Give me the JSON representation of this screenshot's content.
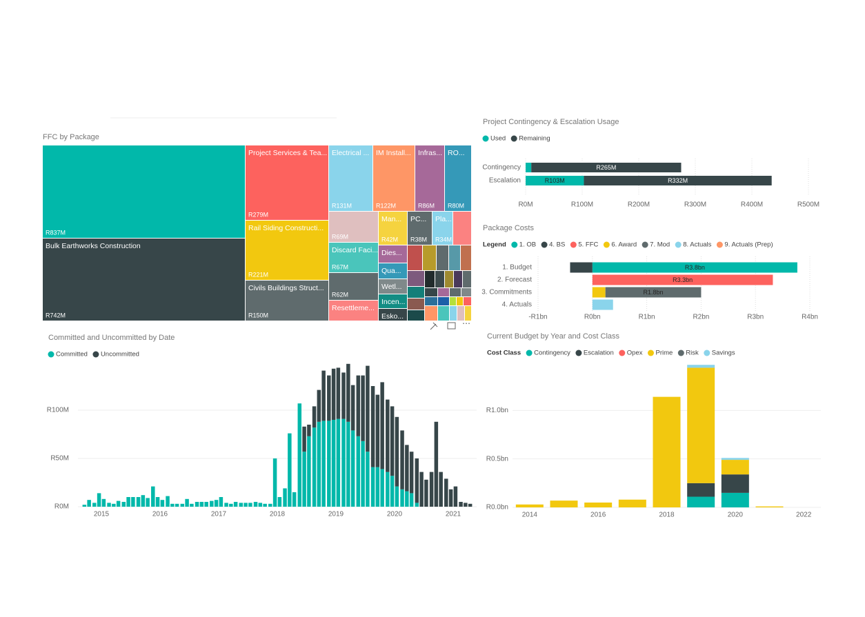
{
  "chart_data": [
    {
      "type": "treemap",
      "title": "FFC by Package",
      "categories": [
        null,
        "Bulk Earthworks Construction",
        "Project Services & Tea...",
        "Rail Siding Constructi...",
        "Civils Buildings Struct...",
        "Electrical ...",
        "IM Install...",
        "Infras...",
        "RO...",
        null,
        "Discard Faci...",
        "Man...",
        "PC...",
        "Pla...",
        null,
        "Resettleme...",
        "Dies...",
        "Qua...",
        "Wetl...",
        "Incen...",
        "Esko..."
      ],
      "values": [
        837,
        742,
        279,
        221,
        150,
        131,
        122,
        86,
        80,
        69,
        67,
        42,
        38,
        34,
        62,
        null,
        null,
        null,
        null,
        null,
        null
      ],
      "value_labels": [
        "R837M",
        "R742M",
        "R279M",
        "R221M",
        "R150M",
        "R131M",
        "R122M",
        "R86M",
        "R80M",
        "R69M",
        "R67M",
        "R42M",
        "R38M",
        "R34M",
        "R62M",
        null,
        null,
        null,
        null,
        null,
        null
      ],
      "colors": [
        "#01b8aa",
        "#374649",
        "#fd625e",
        "#f2c80f",
        "#5f6b6d",
        "#8ad4eb",
        "#fe9666",
        "#a66999",
        "#3599b8",
        "#dfbfbf",
        "#4ac5bb",
        "#f5d33f",
        "#5f6b6d",
        "#8ad4eb",
        "#5f6b6d",
        "#fb8281",
        "#a66999",
        "#3599b8",
        "#7f898a",
        "#138d84",
        "#374649"
      ]
    },
    {
      "type": "bar",
      "horizontal": true,
      "stacked": true,
      "title": "Project Contingency & Escalation Usage",
      "categories": [
        "Contingency",
        "Escalation"
      ],
      "series": [
        {
          "name": "Used",
          "color": "#01b8aa",
          "values": [
            10,
            103
          ],
          "value_labels": [
            null,
            "R103M"
          ]
        },
        {
          "name": "Remaining",
          "color": "#374649",
          "values": [
            265,
            332
          ],
          "value_labels": [
            "R265M",
            "R332M"
          ]
        }
      ],
      "xlim": [
        0,
        500
      ],
      "xticks": [
        {
          "value": 0,
          "label": "R0M"
        },
        {
          "value": 100,
          "label": "R100M"
        },
        {
          "value": 200,
          "label": "R200M"
        },
        {
          "value": 300,
          "label": "R300M"
        },
        {
          "value": 400,
          "label": "R400M"
        },
        {
          "value": 500,
          "label": "R500M"
        }
      ],
      "grid": true
    },
    {
      "type": "bar",
      "horizontal": true,
      "stacked": true,
      "title": "Package Costs",
      "legend_title": "Legend",
      "categories": [
        "1. Budget",
        "2. Forecast",
        "3. Commitments",
        "4. Actuals"
      ],
      "series": [
        {
          "name": "1. OB",
          "color": "#01b8aa",
          "values": [
            3.77,
            null,
            null,
            null
          ],
          "value_labels": [
            "R3.8bn",
            null,
            null,
            null
          ]
        },
        {
          "name": "4. BS",
          "color": "#374649",
          "values": [
            -0.41,
            null,
            null,
            null
          ]
        },
        {
          "name": "5. FFC",
          "color": "#fd625e",
          "values": [
            null,
            3.32,
            null,
            null
          ],
          "value_labels": [
            null,
            "R3.3bn",
            null,
            null
          ]
        },
        {
          "name": "6. Award",
          "color": "#f2c80f",
          "values": [
            null,
            null,
            0.24,
            null
          ]
        },
        {
          "name": "7. Mod",
          "color": "#5f6b6d",
          "values": [
            null,
            null,
            1.76,
            null
          ],
          "value_labels": [
            null,
            null,
            "R1.8bn",
            null
          ]
        },
        {
          "name": "8. Actuals",
          "color": "#8ad4eb",
          "values": [
            null,
            null,
            null,
            0.38
          ]
        },
        {
          "name": "9. Actuals (Prep)",
          "color": "#fe9666",
          "values": [
            null,
            null,
            null,
            null
          ]
        }
      ],
      "xlim": [
        -1.1,
        4.1
      ],
      "xticks": [
        {
          "value": -1,
          "label": "-R1bn"
        },
        {
          "value": 0,
          "label": "R0bn"
        },
        {
          "value": 1,
          "label": "R1bn"
        },
        {
          "value": 2,
          "label": "R2bn"
        },
        {
          "value": 3,
          "label": "R3bn"
        },
        {
          "value": 4,
          "label": "R4bn"
        }
      ],
      "grid": true
    },
    {
      "type": "bar",
      "horizontal": false,
      "stacked": true,
      "title": "Committed and Uncommitted by Date",
      "x": [
        2014.71,
        2014.79,
        2014.88,
        2014.96,
        2015.04,
        2015.13,
        2015.21,
        2015.29,
        2015.38,
        2015.46,
        2015.54,
        2015.63,
        2015.71,
        2015.79,
        2015.88,
        2015.96,
        2016.04,
        2016.13,
        2016.21,
        2016.29,
        2016.38,
        2016.46,
        2016.54,
        2016.63,
        2016.71,
        2016.79,
        2016.88,
        2016.96,
        2017.04,
        2017.13,
        2017.21,
        2017.29,
        2017.38,
        2017.46,
        2017.54,
        2017.63,
        2017.71,
        2017.79,
        2017.88,
        2017.96,
        2018.04,
        2018.13,
        2018.21,
        2018.29,
        2018.38,
        2018.46,
        2018.54,
        2018.63,
        2018.71,
        2018.79,
        2018.88,
        2018.96,
        2019.04,
        2019.13,
        2019.21,
        2019.29,
        2019.38,
        2019.46,
        2019.54,
        2019.63,
        2019.71,
        2019.79,
        2019.88,
        2019.96,
        2020.04,
        2020.13,
        2020.21,
        2020.29,
        2020.38,
        2020.46,
        2020.54,
        2020.63,
        2020.71,
        2020.79,
        2020.88,
        2020.96,
        2021.04,
        2021.13,
        2021.21,
        2021.29
      ],
      "series": [
        {
          "name": "Committed",
          "color": "#01b8aa",
          "values": [
            2,
            7,
            4,
            14,
            8,
            4,
            3,
            6,
            5,
            10,
            10,
            10,
            12,
            9,
            21,
            10,
            7,
            11,
            3,
            3,
            3,
            8,
            3,
            5,
            5,
            5,
            6,
            7,
            10,
            4,
            3,
            5,
            4,
            4,
            4,
            5,
            4,
            3,
            3,
            50,
            10,
            19,
            76,
            15,
            107,
            57,
            73,
            82,
            88,
            89,
            89,
            90,
            91,
            91,
            88,
            79,
            73,
            68,
            57,
            41,
            41,
            39,
            36,
            32,
            21,
            18,
            16,
            14,
            4,
            null,
            null,
            null,
            null,
            null,
            null,
            null,
            null,
            null,
            null,
            null
          ]
        },
        {
          "name": "Uncommitted",
          "color": "#374649",
          "values": [
            null,
            null,
            null,
            null,
            null,
            null,
            null,
            null,
            null,
            null,
            null,
            null,
            null,
            null,
            null,
            null,
            null,
            null,
            null,
            null,
            null,
            null,
            null,
            null,
            null,
            null,
            null,
            null,
            null,
            null,
            null,
            null,
            null,
            null,
            null,
            null,
            null,
            null,
            null,
            null,
            null,
            null,
            null,
            null,
            null,
            26,
            12,
            22,
            33,
            52,
            47,
            53,
            53,
            48,
            60,
            47,
            63,
            68,
            89,
            84,
            75,
            90,
            75,
            72,
            72,
            61,
            48,
            43,
            46,
            36,
            28,
            36,
            88,
            36,
            29,
            18,
            21,
            5,
            4,
            3
          ]
        }
      ],
      "xlim": [
        2014.6,
        2021.4
      ],
      "xticks": [
        2015,
        2016,
        2017,
        2018,
        2019,
        2020,
        2021
      ],
      "ylim": [
        0,
        150
      ],
      "yticks": [
        {
          "value": 0,
          "label": "R0M"
        },
        {
          "value": 50,
          "label": "R50M"
        },
        {
          "value": 100,
          "label": "R100M"
        }
      ],
      "grid": true
    },
    {
      "type": "bar",
      "horizontal": false,
      "stacked": true,
      "title": "Current Budget by Year and Cost Class",
      "legend_title": "Cost Class",
      "x": [
        2014,
        2015,
        2016,
        2017,
        2018,
        2019,
        2020,
        2021
      ],
      "series": [
        {
          "name": "Contingency",
          "color": "#01b8aa",
          "values": [
            null,
            null,
            null,
            null,
            null,
            0.11,
            0.15,
            null
          ]
        },
        {
          "name": "Escalation",
          "color": "#374649",
          "values": [
            null,
            null,
            null,
            null,
            null,
            0.14,
            0.19,
            null
          ]
        },
        {
          "name": "Opex",
          "color": "#fd625e",
          "values": [
            null,
            null,
            null,
            null,
            null,
            null,
            null,
            null
          ]
        },
        {
          "name": "Prime",
          "color": "#f2c80f",
          "values": [
            0.03,
            0.07,
            0.05,
            0.08,
            1.14,
            1.19,
            0.15,
            0.01
          ]
        },
        {
          "name": "Risk",
          "color": "#5f6b6d",
          "values": [
            null,
            null,
            null,
            null,
            null,
            null,
            null,
            null
          ]
        },
        {
          "name": "Savings",
          "color": "#8ad4eb",
          "values": [
            null,
            null,
            null,
            null,
            null,
            0.03,
            0.02,
            null
          ]
        }
      ],
      "xlim": [
        2013.5,
        2022.5
      ],
      "xticks": [
        2014,
        2016,
        2018,
        2020,
        2022
      ],
      "ylim": [
        0,
        1.5
      ],
      "yticks": [
        {
          "value": 0,
          "label": "R0.0bn"
        },
        {
          "value": 0.5,
          "label": "R0.5bn"
        },
        {
          "value": 1,
          "label": "R1.0bn"
        }
      ],
      "grid": true
    }
  ]
}
